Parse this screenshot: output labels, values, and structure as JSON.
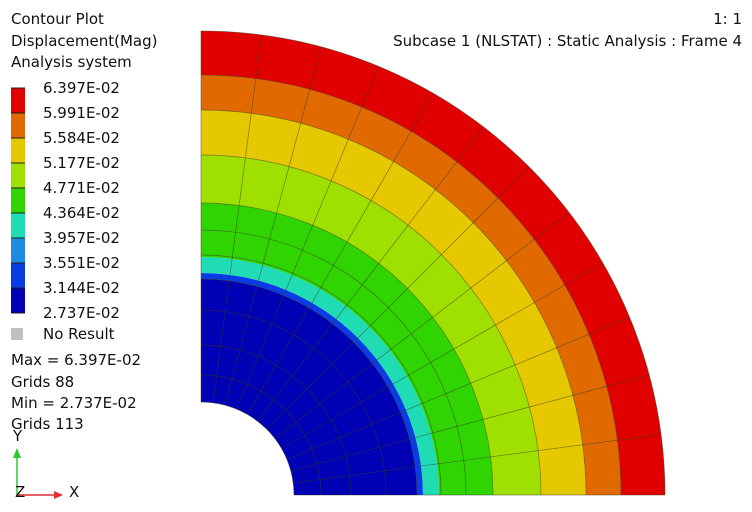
{
  "header": {
    "lines": [
      "Contour Plot",
      "Displacement(Mag)",
      "Analysis system"
    ],
    "scale": "1: 1",
    "subcase": "Subcase 1 (NLSTAT) : Static Analysis : Frame 4"
  },
  "legend": {
    "levels": [
      "6.397E-02",
      "5.991E-02",
      "5.584E-02",
      "5.177E-02",
      "4.771E-02",
      "4.364E-02",
      "3.957E-02",
      "3.551E-02",
      "3.144E-02",
      "2.737E-02"
    ],
    "colors": [
      "#e00000",
      "#e06a00",
      "#e6c800",
      "#a0e000",
      "#30d400",
      "#20dcb4",
      "#1e8ce0",
      "#0a3ce6",
      "#0000b4"
    ],
    "no_result": "No Result"
  },
  "summary": [
    "Max = 6.397E-02",
    "Grids 88",
    "Min = 2.737E-02",
    "Grids 113"
  ],
  "triad": {
    "y": "Y",
    "z": "Z",
    "x": "X"
  }
}
